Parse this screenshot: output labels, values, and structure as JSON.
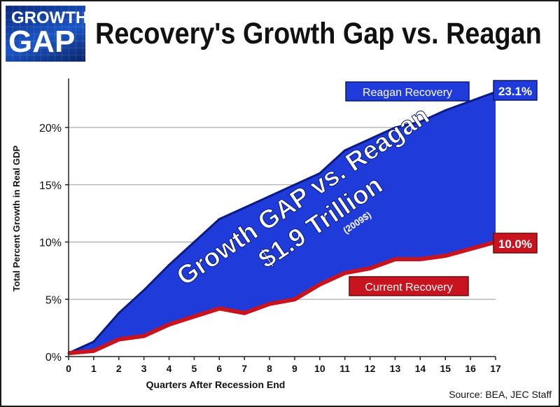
{
  "header": {
    "logo_line1": "GROWTH",
    "logo_line2": "GAP",
    "title": "Recovery's Growth Gap vs. Reagan"
  },
  "source": "Source: BEA, JEC Staff",
  "colors": {
    "reagan_fill": "#1f3bd9",
    "reagan_line": "#0a1a8a",
    "current_line": "#c8141e",
    "current_label_bg": "#c8141e",
    "reagan_label_bg": "#1f3bd9"
  },
  "chart_data": {
    "type": "area",
    "title": "Recovery's Growth Gap vs. Reagan",
    "xlabel": "Quarters After Recession End",
    "ylabel": "Total Percent Growth in Real GDP",
    "x": [
      0,
      1,
      2,
      3,
      4,
      5,
      6,
      7,
      8,
      9,
      10,
      11,
      12,
      13,
      14,
      15,
      16,
      17
    ],
    "xlim": [
      0,
      17
    ],
    "ylim": [
      0,
      22
    ],
    "yticks": [
      0,
      5,
      10,
      15,
      20
    ],
    "ytick_labels": [
      "0%",
      "5%",
      "10%",
      "15%",
      "20%"
    ],
    "series": [
      {
        "name": "Reagan Recovery",
        "values": [
          0.3,
          1.3,
          3.8,
          5.8,
          8.0,
          10.0,
          12.0,
          13.0,
          14.0,
          15.0,
          16.0,
          18.0,
          19.0,
          20.0,
          20.5,
          21.5,
          22.3,
          23.1
        ],
        "end_label": "23.1%"
      },
      {
        "name": "Current Recovery",
        "values": [
          0.3,
          0.5,
          1.5,
          1.8,
          2.8,
          3.5,
          4.2,
          3.8,
          4.6,
          5.0,
          6.3,
          7.3,
          7.7,
          8.5,
          8.5,
          8.8,
          9.4,
          10.0
        ],
        "end_label": "10.0%"
      }
    ],
    "annotations": {
      "gap_line1": "Growth GAP vs. Reagan",
      "gap_line2": "$1.9 Trillion",
      "gap_line3": "(2009$)"
    },
    "grid": "horizontal"
  }
}
